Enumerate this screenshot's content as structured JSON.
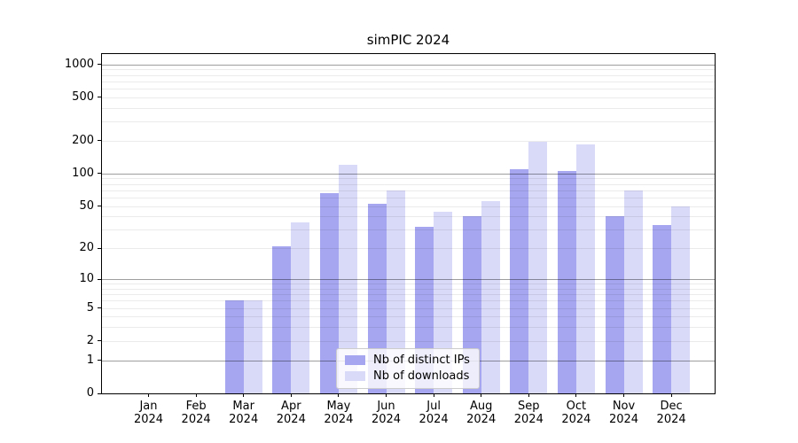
{
  "title": "simPIC 2024",
  "chart_data": {
    "type": "bar",
    "title": "simPIC 2024",
    "categories": [
      "Jan 2024",
      "Feb 2024",
      "Mar 2024",
      "Apr 2024",
      "May 2024",
      "Jun 2024",
      "Jul 2024",
      "Aug 2024",
      "Sep 2024",
      "Oct 2024",
      "Nov 2024",
      "Dec 2024"
    ],
    "months": [
      "Jan",
      "Feb",
      "Mar",
      "Apr",
      "May",
      "Jun",
      "Jul",
      "Aug",
      "Sep",
      "Oct",
      "Nov",
      "Dec"
    ],
    "year": "2024",
    "series": [
      {
        "name": "Nb of distinct IPs",
        "color": "#a5a5f0",
        "values": [
          0,
          0,
          6,
          21,
          66,
          53,
          32,
          40,
          110,
          105,
          40,
          33
        ]
      },
      {
        "name": "Nb of downloads",
        "color": "#d9d9f8",
        "values": [
          0,
          0,
          6,
          35,
          120,
          70,
          44,
          56,
          195,
          185,
          70,
          50
        ]
      }
    ],
    "y_ticks": [
      0,
      1,
      2,
      5,
      10,
      20,
      50,
      100,
      200,
      500,
      1000
    ],
    "y_scale": "log10(1+x)",
    "ylim": [
      0,
      1290
    ],
    "xlabel": "",
    "ylabel": "",
    "grid": true,
    "legend_position": "lower center"
  }
}
